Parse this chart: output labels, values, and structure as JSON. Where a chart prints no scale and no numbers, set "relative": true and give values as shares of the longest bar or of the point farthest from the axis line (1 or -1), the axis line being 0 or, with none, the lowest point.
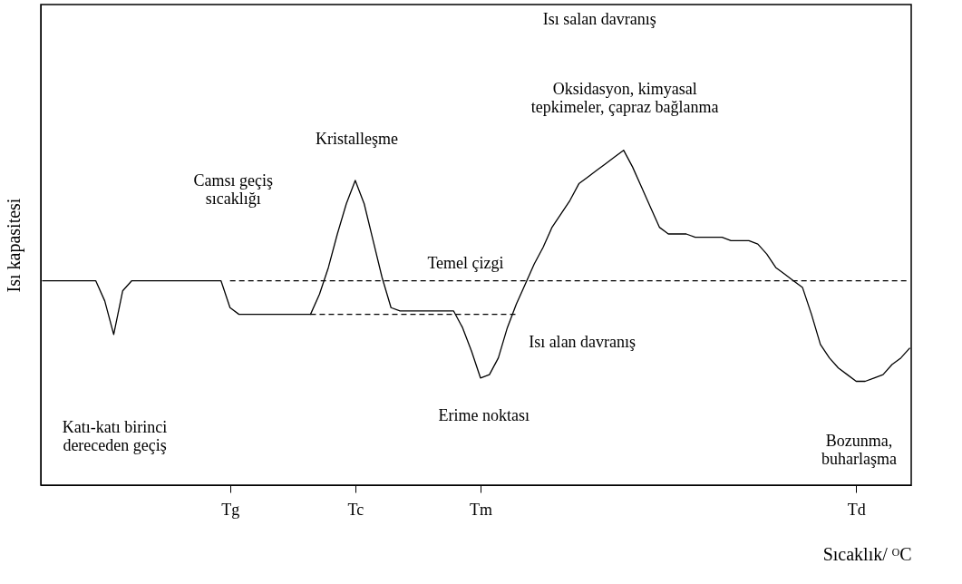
{
  "chart_data": {
    "type": "line",
    "relative": true,
    "xlabel": "Sıcaklık/ ᴼC",
    "ylabel": "Isı kapasitesi",
    "grid": false,
    "categories": [
      null,
      null,
      null,
      null,
      null,
      null,
      null,
      null,
      null,
      null,
      null,
      null,
      null,
      null,
      null,
      null,
      null,
      null,
      null,
      null,
      null,
      "Tg",
      null,
      null,
      null,
      null,
      null,
      null,
      null,
      null,
      null,
      null,
      null,
      null,
      null,
      "Tc",
      null,
      null,
      null,
      null,
      null,
      null,
      null,
      null,
      null,
      null,
      null,
      null,
      null,
      "Tm",
      null,
      null,
      null,
      null,
      null,
      null,
      null,
      null,
      null,
      null,
      null,
      null,
      null,
      null,
      null,
      null,
      null,
      null,
      null,
      null,
      null,
      null,
      null,
      null,
      null,
      null,
      null,
      null,
      null,
      null,
      null,
      null,
      null,
      null,
      null,
      null,
      null,
      null,
      null,
      null,
      null,
      "Td",
      null,
      null,
      null,
      null,
      null,
      null
    ],
    "series": [
      {
        "color": "#000000",
        "line_style": "solid",
        "values": [
          0.61,
          0.61,
          0.61,
          0.61,
          0.61,
          0.61,
          0.61,
          0.55,
          0.45,
          0.58,
          0.61,
          0.61,
          0.61,
          0.61,
          0.61,
          0.61,
          0.61,
          0.61,
          0.61,
          0.61,
          0.61,
          0.53,
          0.51,
          0.51,
          0.51,
          0.51,
          0.51,
          0.51,
          0.51,
          0.51,
          0.51,
          0.57,
          0.65,
          0.75,
          0.84,
          0.91,
          0.84,
          0.73,
          0.62,
          0.53,
          0.52,
          0.52,
          0.52,
          0.52,
          0.52,
          0.52,
          0.52,
          0.47,
          0.4,
          0.32,
          0.33,
          0.38,
          0.47,
          0.54,
          0.6,
          0.66,
          0.71,
          0.77,
          0.81,
          0.85,
          0.9,
          0.92,
          0.94,
          0.96,
          0.98,
          1,
          0.95,
          0.89,
          0.83,
          0.77,
          0.75,
          0.75,
          0.75,
          0.74,
          0.74,
          0.74,
          0.74,
          0.73,
          0.73,
          0.73,
          0.72,
          0.69,
          0.65,
          0.63,
          0.61,
          0.59,
          0.51,
          0.42,
          0.38,
          0.35,
          0.33,
          0.31,
          0.31,
          0.32,
          0.33,
          0.36,
          0.38,
          0.41
        ]
      },
      {
        "color": "#000000",
        "line_style": "dashed",
        "values": [
          null,
          null,
          null,
          null,
          null,
          null,
          null,
          null,
          null,
          null,
          null,
          null,
          null,
          null,
          null,
          null,
          null,
          null,
          null,
          null,
          null,
          0.61,
          0.61,
          0.61,
          0.61,
          0.61,
          0.61,
          0.61,
          0.61,
          0.61,
          0.61,
          0.61,
          0.61,
          0.61,
          0.61,
          0.61,
          0.61,
          0.61,
          0.61,
          0.61,
          0.61,
          0.61,
          0.61,
          0.61,
          0.61,
          0.61,
          0.61,
          0.61,
          0.61,
          0.61,
          0.61,
          0.61,
          0.61,
          0.61,
          0.61,
          0.61,
          0.61,
          0.61,
          0.61,
          0.61,
          0.61,
          0.61,
          0.61,
          0.61,
          0.61,
          0.61,
          0.61,
          0.61,
          0.61,
          0.61,
          0.61,
          0.61,
          0.61,
          0.61,
          0.61,
          0.61,
          0.61,
          0.61,
          0.61,
          0.61,
          0.61,
          0.61,
          0.61,
          0.61,
          0.61,
          0.61,
          0.61,
          0.61,
          0.61,
          0.61,
          0.61,
          0.61,
          0.61,
          0.61,
          0.61,
          0.61,
          0.61,
          0.61
        ]
      },
      {
        "color": "#000000",
        "line_style": "dashed",
        "values": [
          null,
          null,
          null,
          null,
          null,
          null,
          null,
          null,
          null,
          null,
          null,
          null,
          null,
          null,
          null,
          null,
          null,
          null,
          null,
          null,
          null,
          null,
          null,
          null,
          null,
          null,
          null,
          null,
          null,
          null,
          0.51,
          0.51,
          0.51,
          0.51,
          0.51,
          0.51,
          0.51,
          0.51,
          0.51,
          0.51,
          0.51,
          0.51,
          0.51,
          0.51,
          0.51,
          0.51,
          0.51,
          0.51,
          0.51,
          0.51,
          0.51,
          0.51,
          0.51,
          0.51,
          null,
          null,
          null,
          null,
          null,
          null,
          null,
          null,
          null,
          null,
          null,
          null,
          null,
          null,
          null,
          null,
          null,
          null,
          null,
          null,
          null,
          null,
          null,
          null,
          null,
          null,
          null,
          null,
          null,
          null,
          null,
          null,
          null,
          null,
          null,
          null,
          null,
          null,
          null,
          null,
          null,
          null,
          null,
          null
        ]
      }
    ],
    "annotations": [
      "Isı salan davranış",
      "Oksidasyon, kimyasal\ntepkimeler, çapraz  bağlanma",
      "Kristalleşme",
      "Camsı geçiş\nsıcaklığı",
      "Temel çizgi",
      "Isı alan davranış",
      "Katı-katı birinci\ndereceden geçiş",
      "Erime  noktası",
      "Bozunma,\nbuharlaşma"
    ]
  }
}
